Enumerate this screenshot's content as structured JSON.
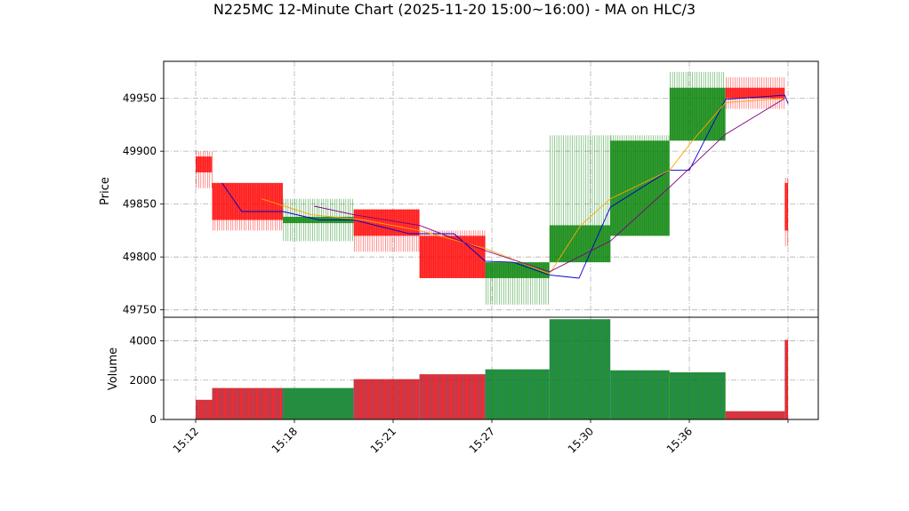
{
  "chart_data": {
    "type": "candlestick",
    "title": "N225MC 12-Minute Chart (2025-11-20 15:00~16:00) - MA on HLC/3",
    "price_panel": {
      "ylabel": "Price",
      "ylim": [
        49743,
        49985
      ],
      "yticks": [
        49750,
        49800,
        49850,
        49900,
        49950
      ],
      "grid": true
    },
    "volume_panel": {
      "ylabel": "Volume",
      "ylim": [
        0,
        5200
      ],
      "yticks": [
        0,
        2000,
        4000
      ],
      "grid": true
    },
    "x_axis": {
      "tick_labels": [
        "15:12",
        "15:18",
        "15:21",
        "15:27",
        "15:30",
        "15:36",
        ""
      ],
      "tick_positions_min": [
        12,
        18,
        24,
        30,
        36,
        42,
        48
      ]
    },
    "colors": {
      "up": "#008000",
      "down": "#ff0000",
      "ma_short": "#0000cd",
      "ma_mid": "#ffa500",
      "ma_long": "#800080"
    },
    "candles": [
      {
        "start": 12.0,
        "end": 13.0,
        "open": 49895,
        "close": 49880,
        "high": 49900,
        "low": 49865,
        "volume": 1000
      },
      {
        "start": 13.0,
        "end": 17.3,
        "open": 49870,
        "close": 49835,
        "high": 49870,
        "low": 49825,
        "volume": 1600
      },
      {
        "start": 17.3,
        "end": 21.6,
        "open": 49832,
        "close": 49838,
        "high": 49855,
        "low": 49815,
        "volume": 1600
      },
      {
        "start": 21.6,
        "end": 25.6,
        "open": 49845,
        "close": 49820,
        "high": 49845,
        "low": 49805,
        "volume": 2050
      },
      {
        "start": 25.6,
        "end": 29.6,
        "open": 49820,
        "close": 49780,
        "high": 49825,
        "low": 49780,
        "volume": 2300
      },
      {
        "start": 29.6,
        "end": 33.5,
        "open": 49780,
        "close": 49795,
        "high": 49795,
        "low": 49755,
        "volume": 2550
      },
      {
        "start": 33.5,
        "end": 37.2,
        "open": 49795,
        "close": 49830,
        "high": 49915,
        "low": 49795,
        "volume": 5100
      },
      {
        "start": 37.2,
        "end": 40.8,
        "open": 49820,
        "close": 49910,
        "high": 49915,
        "low": 49820,
        "volume": 2500
      },
      {
        "start": 40.8,
        "end": 44.2,
        "open": 49910,
        "close": 49960,
        "high": 49975,
        "low": 49910,
        "volume": 2400
      },
      {
        "start": 44.2,
        "end": 47.8,
        "open": 49960,
        "close": 49950,
        "high": 49970,
        "low": 49940,
        "volume": 420
      },
      {
        "start": 47.8,
        "end": 48.0,
        "open": 49870,
        "close": 49825,
        "high": 49875,
        "low": 49810,
        "volume": 4050
      }
    ],
    "series": [
      {
        "x": [
          13.6,
          14.8,
          17.3,
          19.5,
          21.6,
          25.0,
          27.7,
          29.6,
          31.3,
          33.5,
          35.3,
          37.2,
          40.8,
          42.0,
          44.2,
          47.8,
          48.0
        ],
        "values": [
          49870,
          49843,
          49843,
          49835,
          49835,
          49822,
          49822,
          49796,
          49795,
          49783,
          49780,
          49847,
          49882,
          49882,
          49949,
          49953,
          49945
        ],
        "color": "#0000cd"
      },
      {
        "x": [
          16.0,
          19.0,
          22.2,
          25.6,
          29.6,
          33.5,
          35.4,
          37.2,
          40.8,
          42.2,
          44.2,
          47.8
        ],
        "values": [
          49855,
          49840,
          49835,
          49825,
          49808,
          49784,
          49830,
          49855,
          49882,
          49910,
          49946,
          49950
        ],
        "color": "#ffa500"
      },
      {
        "x": [
          19.2,
          21.6,
          25.6,
          29.6,
          33.5,
          37.2,
          40.8,
          44.2,
          47.8
        ],
        "values": [
          49848,
          49840,
          49830,
          49806,
          49786,
          49815,
          49866,
          49916,
          49950
        ],
        "color": "#800080"
      }
    ]
  }
}
